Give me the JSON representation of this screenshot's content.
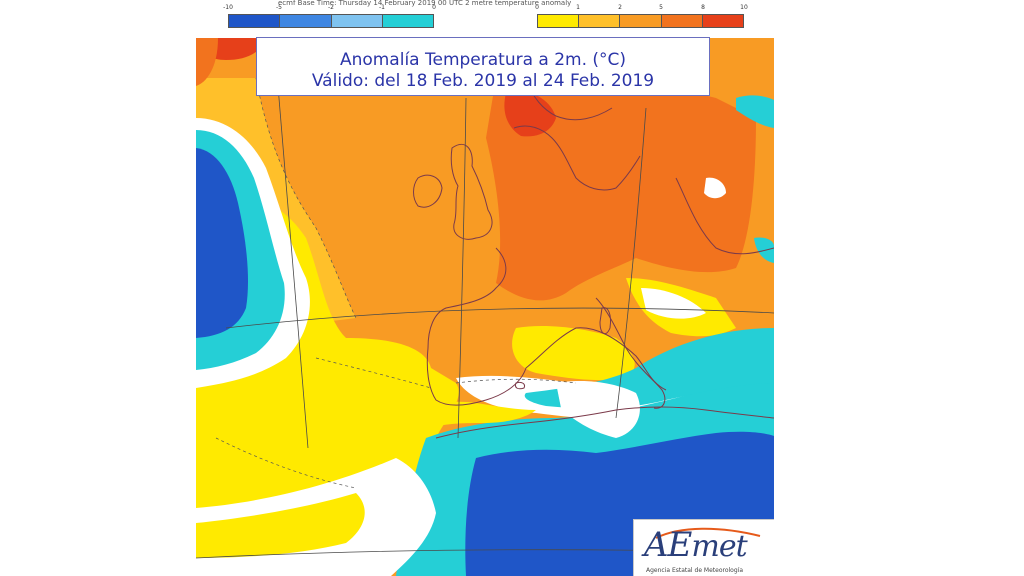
{
  "header": {
    "base_time": "ecmf  Base Time: Thursday 14 February 2019 00 UTC 2 metre temperature anomaly"
  },
  "legend_cold": {
    "ticks": [
      "-10",
      "-5",
      "-2",
      "-1",
      "0"
    ],
    "colors": [
      "#1f56c8",
      "#3f86e2",
      "#7fc3f0",
      "#25cfd6"
    ]
  },
  "legend_warm": {
    "ticks": [
      "0",
      "1",
      "2",
      "5",
      "8",
      "10"
    ],
    "colors": [
      "#ffea00",
      "#ffc02a",
      "#f89b24",
      "#f2731e",
      "#e6401a"
    ]
  },
  "title": {
    "line1": "Anomalía Temperatura a 2m. (°C)",
    "line2": "Válido: del 18 Feb. 2019 al 24 Feb. 2019"
  },
  "map": {
    "colors": {
      "deep_blue": "#1f56c8",
      "cyan": "#25cfd6",
      "white_band": "#ffffff",
      "yellow": "#ffea00",
      "light_orange": "#ffc02a",
      "orange": "#f89b24",
      "dark_orange": "#f2731e",
      "red": "#e6401a",
      "coastline": "#7b3a4a"
    }
  },
  "logo": {
    "ae": "AE",
    "met": "met",
    "subtitle": "Agencia Estatal de Meteorología"
  }
}
